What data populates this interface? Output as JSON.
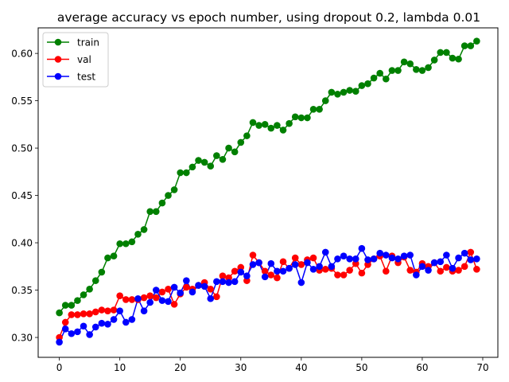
{
  "chart_data": {
    "type": "line",
    "title": "average accuracy vs epoch number, using dropout 0.2, lambda 0.01",
    "xlabel": "",
    "ylabel": "",
    "xlim": [
      -3.5,
      72.5
    ],
    "ylim": [
      0.279,
      0.627
    ],
    "xticks": [
      0,
      10,
      20,
      30,
      40,
      50,
      60,
      70
    ],
    "yticks": [
      0.3,
      0.35,
      0.4,
      0.45,
      0.5,
      0.55,
      0.6
    ],
    "ytick_labels": [
      "0.30",
      "0.35",
      "0.40",
      "0.45",
      "0.50",
      "0.55",
      "0.60"
    ],
    "legend_position": "top-left",
    "grid": false,
    "series": [
      {
        "name": "train",
        "color": "#008000",
        "values": [
          0.326,
          0.334,
          0.334,
          0.339,
          0.345,
          0.351,
          0.36,
          0.369,
          0.384,
          0.386,
          0.399,
          0.399,
          0.401,
          0.409,
          0.414,
          0.433,
          0.433,
          0.442,
          0.45,
          0.456,
          0.474,
          0.474,
          0.48,
          0.487,
          0.485,
          0.481,
          0.492,
          0.488,
          0.5,
          0.496,
          0.506,
          0.513,
          0.527,
          0.524,
          0.525,
          0.521,
          0.524,
          0.519,
          0.526,
          0.533,
          0.532,
          0.532,
          0.541,
          0.541,
          0.55,
          0.559,
          0.557,
          0.559,
          0.561,
          0.56,
          0.566,
          0.568,
          0.574,
          0.579,
          0.573,
          0.582,
          0.582,
          0.591,
          0.589,
          0.583,
          0.582,
          0.585,
          0.593,
          0.601,
          0.601,
          0.595,
          0.594,
          0.608,
          0.608,
          0.613
        ]
      },
      {
        "name": "val",
        "color": "#ff0000",
        "values": [
          0.3,
          0.316,
          0.324,
          0.324,
          0.325,
          0.325,
          0.327,
          0.329,
          0.328,
          0.329,
          0.344,
          0.34,
          0.34,
          0.34,
          0.342,
          0.344,
          0.342,
          0.348,
          0.351,
          0.335,
          0.346,
          0.353,
          0.351,
          0.355,
          0.358,
          0.351,
          0.343,
          0.365,
          0.363,
          0.37,
          0.374,
          0.36,
          0.387,
          0.379,
          0.37,
          0.366,
          0.363,
          0.38,
          0.373,
          0.384,
          0.377,
          0.382,
          0.384,
          0.371,
          0.372,
          0.373,
          0.366,
          0.366,
          0.371,
          0.378,
          0.368,
          0.377,
          0.383,
          0.386,
          0.37,
          0.386,
          0.379,
          0.385,
          0.371,
          0.369,
          0.378,
          0.375,
          0.379,
          0.37,
          0.374,
          0.37,
          0.371,
          0.375,
          0.39,
          0.372
        ]
      },
      {
        "name": "test",
        "color": "#0000ff",
        "values": [
          0.295,
          0.309,
          0.304,
          0.306,
          0.312,
          0.303,
          0.311,
          0.315,
          0.314,
          0.319,
          0.328,
          0.316,
          0.319,
          0.341,
          0.328,
          0.337,
          0.35,
          0.339,
          0.338,
          0.353,
          0.347,
          0.36,
          0.348,
          0.355,
          0.354,
          0.341,
          0.359,
          0.359,
          0.358,
          0.359,
          0.369,
          0.365,
          0.377,
          0.379,
          0.364,
          0.378,
          0.37,
          0.37,
          0.373,
          0.377,
          0.358,
          0.379,
          0.372,
          0.375,
          0.39,
          0.375,
          0.383,
          0.386,
          0.383,
          0.383,
          0.394,
          0.382,
          0.383,
          0.389,
          0.387,
          0.384,
          0.383,
          0.386,
          0.387,
          0.366,
          0.375,
          0.371,
          0.379,
          0.38,
          0.387,
          0.373,
          0.384,
          0.389,
          0.382,
          0.383
        ]
      }
    ]
  }
}
